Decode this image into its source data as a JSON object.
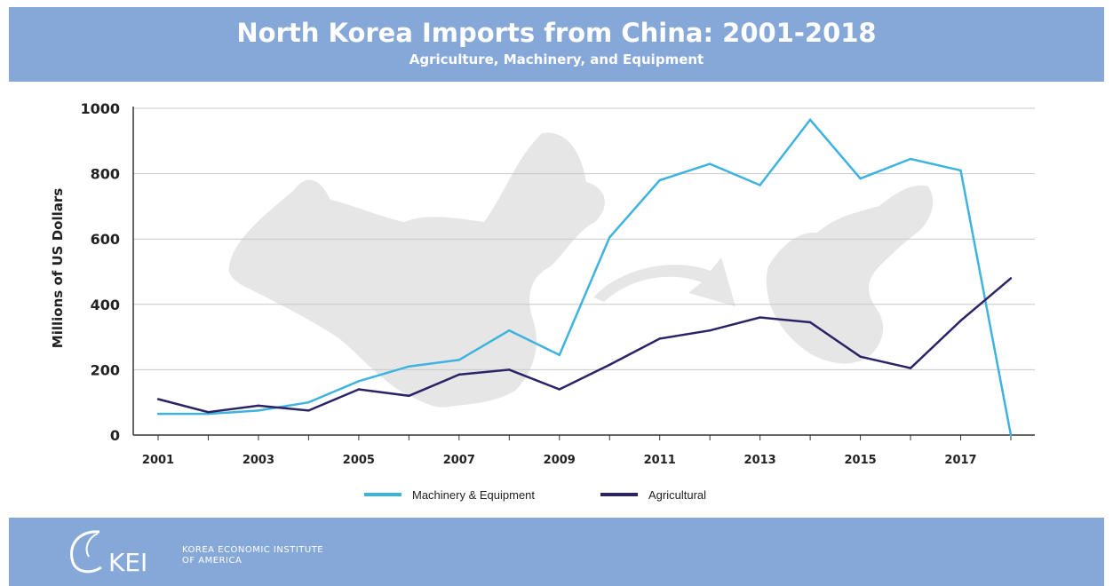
{
  "header": {
    "title": "North Korea Imports from China: 2001-2018",
    "subtitle": "Agriculture, Machinery, and Equipment"
  },
  "footer": {
    "logo_letters": "KEI",
    "logo_name_line1": "KOREA ECONOMIC INSTITUTE",
    "logo_name_line2": "OF AMERICA"
  },
  "colors": {
    "banner": "#86a8d8",
    "machinery_line": "#3fb3e0",
    "agricultural_line": "#2a2467",
    "gridline": "#c8c8c8",
    "map_silhouette": "#e6e6e6"
  },
  "chart_data": {
    "type": "line",
    "title": "North Korea Imports from China: 2001-2018",
    "subtitle": "Agriculture, Machinery, and Equipment",
    "xlabel": "",
    "ylabel": "Millions of US Dollars",
    "x": [
      2001,
      2002,
      2003,
      2004,
      2005,
      2006,
      2007,
      2008,
      2009,
      2010,
      2011,
      2012,
      2013,
      2014,
      2015,
      2016,
      2017,
      2018
    ],
    "x_tick_labels": [
      "2001",
      "2003",
      "2005",
      "2007",
      "2009",
      "2011",
      "2013",
      "2015",
      "2017"
    ],
    "y_tick_labels": [
      "0",
      "200",
      "400",
      "600",
      "800",
      "1000"
    ],
    "ylim": [
      0,
      1000
    ],
    "grid": true,
    "legend_position": "bottom-center",
    "series": [
      {
        "name": "Machinery & Equipment",
        "values": [
          65,
          65,
          75,
          100,
          165,
          210,
          230,
          320,
          245,
          605,
          780,
          830,
          765,
          965,
          785,
          845,
          810,
          0
        ]
      },
      {
        "name": "Agricultural",
        "values": [
          110,
          70,
          90,
          75,
          140,
          120,
          185,
          200,
          140,
          215,
          295,
          320,
          360,
          345,
          240,
          205,
          350,
          480
        ]
      }
    ]
  }
}
